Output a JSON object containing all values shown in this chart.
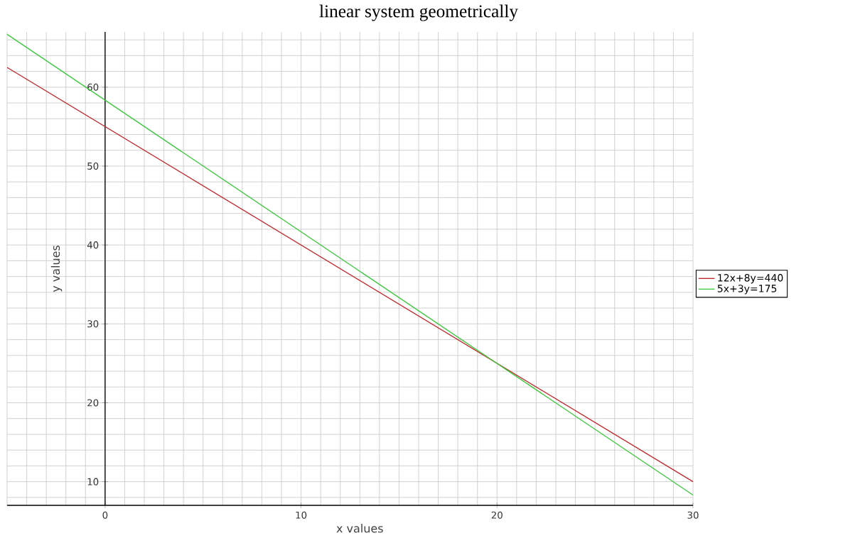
{
  "chart_data": {
    "type": "line",
    "title": "linear system geometrically",
    "xlabel": "x values",
    "ylabel": "y values",
    "x": [
      -5,
      30
    ],
    "series": [
      {
        "name": "12x+8y=440",
        "color": "#c0282d",
        "values": [
          62.5,
          10
        ]
      },
      {
        "name": "5x+3y=175",
        "color": "#3cc83c",
        "values": [
          66.7,
          8.3
        ]
      }
    ],
    "xlim": [
      -5,
      30
    ],
    "ylim": [
      7,
      67
    ],
    "xticks": [
      0,
      10,
      20,
      30
    ],
    "yticks": [
      10,
      20,
      30,
      40,
      50,
      60
    ],
    "grid": true,
    "legend": "right",
    "marker": "none",
    "line_style": "solid"
  }
}
